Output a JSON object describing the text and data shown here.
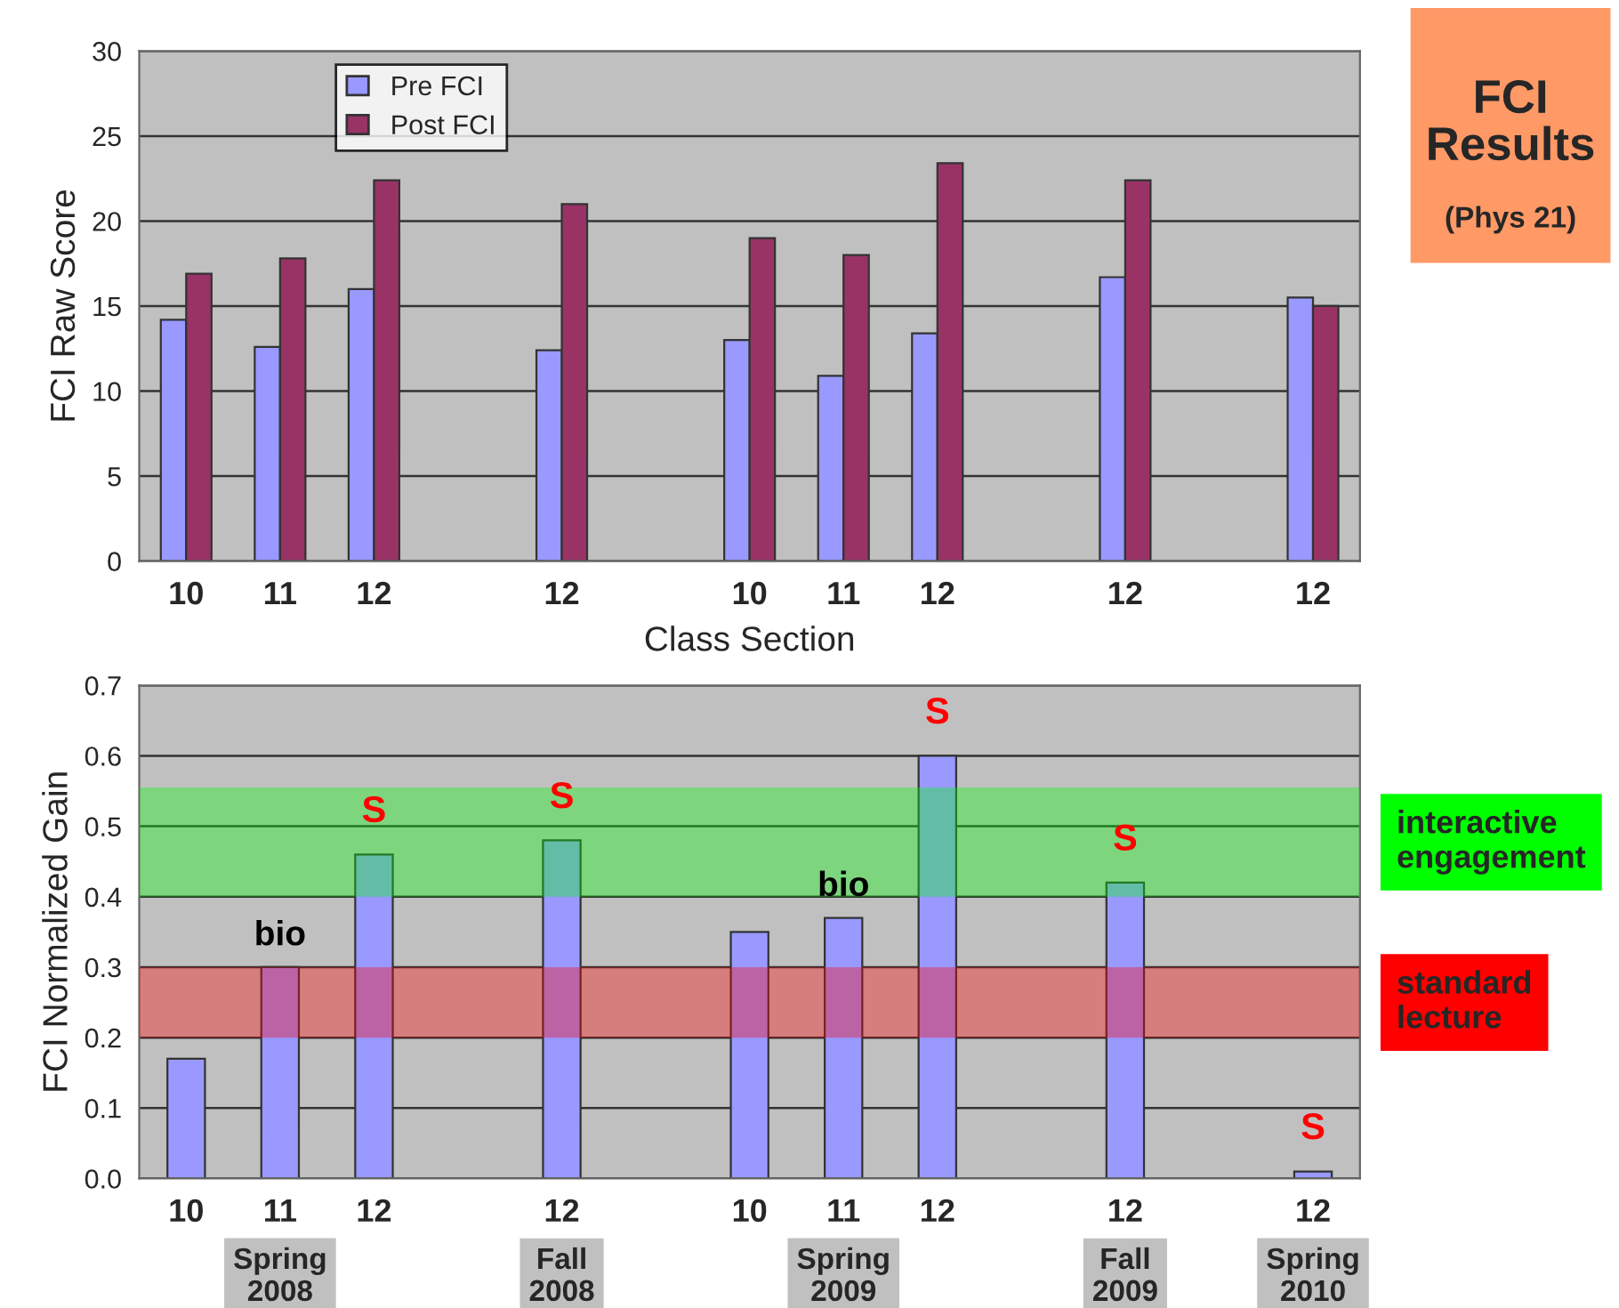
{
  "chart_data": [
    {
      "type": "bar",
      "xlabel": "Class Section",
      "ylabel": "FCI Raw Score",
      "categories": [
        "10",
        "11",
        "12",
        null,
        "12",
        null,
        "10",
        "11",
        "12",
        null,
        "12",
        null,
        "12"
      ],
      "series": [
        {
          "name": "Pre FCI",
          "color": "#9999ff",
          "values": [
            14.2,
            12.6,
            16.0,
            null,
            12.4,
            null,
            13.0,
            10.9,
            13.4,
            null,
            16.7,
            null,
            15.5
          ]
        },
        {
          "name": "Post FCI",
          "color": "#993366",
          "values": [
            16.9,
            17.8,
            22.4,
            null,
            21.0,
            null,
            19.0,
            18.0,
            23.4,
            null,
            22.4,
            null,
            15.0
          ]
        }
      ],
      "ylim": [
        0,
        30
      ],
      "yticks": [
        0,
        5,
        10,
        15,
        20,
        25,
        30
      ],
      "grid": "y",
      "legend": "top left"
    },
    {
      "type": "bar",
      "ylabel": "FCI Normalized Gain",
      "categories": [
        "10",
        "11",
        "12",
        null,
        "12",
        null,
        "10",
        "11",
        "12",
        null,
        "12",
        null,
        "12"
      ],
      "series": [
        {
          "color": "#9999ff",
          "values": [
            0.17,
            0.3,
            0.46,
            null,
            0.48,
            null,
            0.35,
            0.37,
            0.6,
            null,
            0.42,
            null,
            0.01
          ],
          "value_labels": [
            null,
            "bio",
            "S",
            null,
            "S",
            null,
            null,
            "bio",
            "S",
            null,
            "S",
            null,
            "S"
          ]
        }
      ],
      "ylim": [
        0,
        0.7
      ],
      "yticks": [
        {
          "value": 0,
          "label": "0.0"
        },
        {
          "value": 0.1,
          "label": "0.1"
        },
        {
          "value": 0.2,
          "label": "0.2"
        },
        {
          "value": 0.3,
          "label": "0.3"
        },
        {
          "value": 0.4,
          "label": "0.4"
        },
        {
          "value": 0.5,
          "label": "0.5"
        },
        {
          "value": 0.6,
          "label": "0.6"
        },
        {
          "value": 0.7,
          "label": "0.7"
        }
      ],
      "grid": "y",
      "bands": [
        {
          "axis": "y",
          "from": 0.4,
          "to": 0.555,
          "label": "interactive engagement",
          "color": "#00ff00"
        },
        {
          "axis": "y",
          "from": 0.2,
          "to": 0.3,
          "label": "standard lecture",
          "color": "#ff0000"
        }
      ],
      "annotations": [
        "Spring 2008",
        "Fall 2008",
        "Spring 2009",
        "Fall 2009",
        "Spring 2010"
      ]
    },
    {
      "type": "other",
      "title": "FCI Results",
      "subtitle": "(Phys 21)"
    }
  ]
}
